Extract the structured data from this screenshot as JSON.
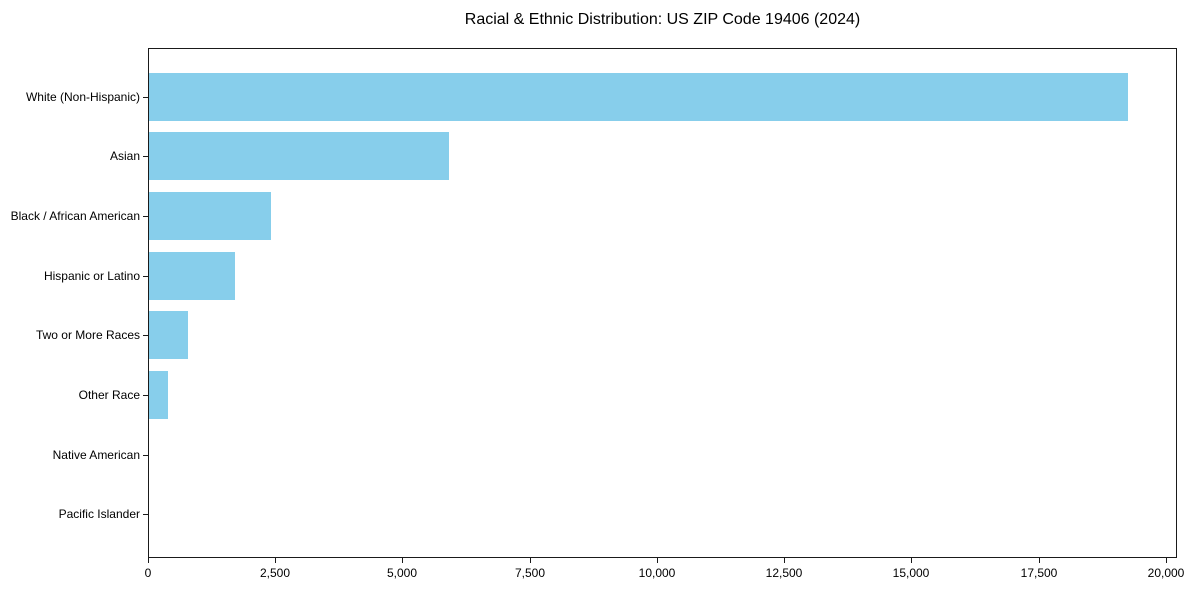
{
  "chart_data": {
    "type": "bar",
    "orientation": "horizontal",
    "title": "Racial & Ethnic Distribution: US ZIP Code 19406 (2024)",
    "categories": [
      "White (Non-Hispanic)",
      "Asian",
      "Black / African American",
      "Hispanic or Latino",
      "Two or More Races",
      "Other Race",
      "Native American",
      "Pacific Islander"
    ],
    "values": [
      19250,
      5900,
      2400,
      1700,
      760,
      370,
      0,
      0
    ],
    "xlabel": "",
    "ylabel": "",
    "xlim": [
      0,
      20200
    ],
    "xticks": [
      0,
      2500,
      5000,
      7500,
      10000,
      12500,
      15000,
      17500,
      20000
    ],
    "xtick_labels": [
      "0",
      "2,500",
      "5,000",
      "7,500",
      "10,000",
      "12,500",
      "15,000",
      "17,500",
      "20,000"
    ],
    "grid": false,
    "legend": null,
    "colors": {
      "bar": "#87CEEB",
      "axis": "#1a1a1a",
      "text": "#000000",
      "background": "#ffffff"
    }
  }
}
